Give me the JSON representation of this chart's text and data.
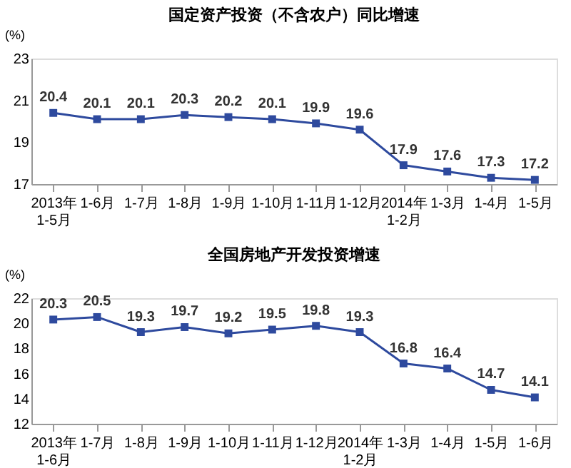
{
  "chart_data": [
    {
      "type": "line",
      "title": "国定资产投资（不含农户）同比增速",
      "ylabel": "(%)",
      "categories": [
        "2013年\n1-5月",
        "1-6月",
        "1-7月",
        "1-8月",
        "1-9月",
        "1-10月",
        "1-11月",
        "1-12月",
        "2014年\n1-2月",
        "1-3月",
        "1-4月",
        "1-5月"
      ],
      "series": [
        {
          "color": "#2e4a9e",
          "values": [
            20.4,
            20.1,
            20.1,
            20.3,
            20.2,
            20.1,
            19.9,
            19.6,
            17.9,
            17.6,
            17.3,
            17.2
          ]
        }
      ],
      "ylim": [
        17,
        23
      ],
      "yticks": [
        17,
        19,
        21,
        23
      ],
      "grid": false,
      "legend": false,
      "marker": "square",
      "line_style": "solid",
      "data_labels": true
    },
    {
      "type": "line",
      "title": "全国房地产开发投资增速",
      "ylabel": "(%)",
      "categories": [
        "2013年\n1-6月",
        "1-7月",
        "1-8月",
        "1-9月",
        "1-10月",
        "1-11月",
        "1-12月",
        "2014年\n1-2月",
        "1-3月",
        "1-4月",
        "1-5月",
        "1-6月"
      ],
      "series": [
        {
          "color": "#2e4a9e",
          "values": [
            20.3,
            20.5,
            19.3,
            19.7,
            19.2,
            19.5,
            19.8,
            19.3,
            16.8,
            16.4,
            14.7,
            14.1
          ]
        }
      ],
      "ylim": [
        12,
        22
      ],
      "yticks": [
        12,
        14,
        16,
        18,
        20,
        22
      ],
      "grid": false,
      "legend": false,
      "marker": "square",
      "line_style": "solid",
      "data_labels": true
    }
  ]
}
